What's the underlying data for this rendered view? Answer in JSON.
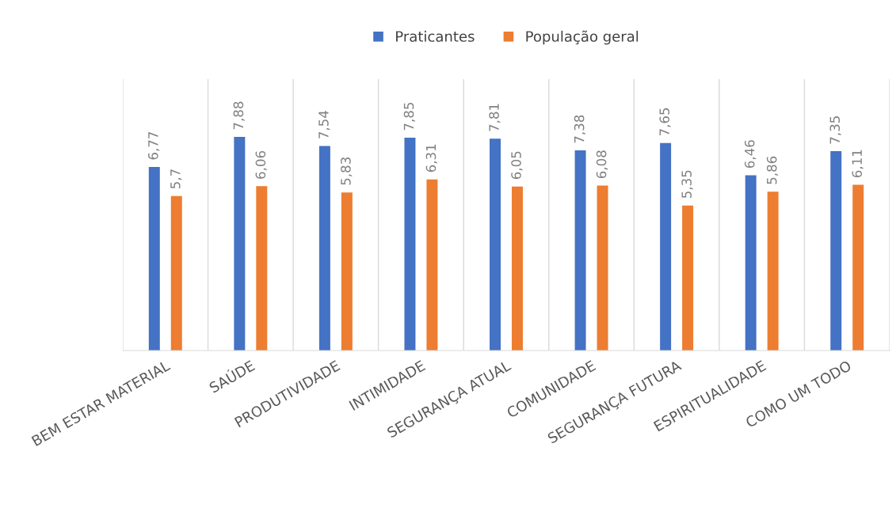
{
  "chart_data": {
    "type": "bar",
    "categories": [
      "BEM ESTAR MATERIAL",
      "SAÚDE",
      "PRODUTIVIDADE",
      "INTIMIDADE",
      "SEGURANÇA ATUAL",
      "COMUNIDADE",
      "SEGURANÇA FUTURA",
      "ESPIRITUALIDADE",
      "COMO UM TODO"
    ],
    "series": [
      {
        "name": "Praticantes",
        "color": "#4472c4",
        "values": [
          6.77,
          7.88,
          7.54,
          7.85,
          7.81,
          7.38,
          7.65,
          6.46,
          7.35
        ],
        "value_labels": [
          "6,77",
          "7,88",
          "7,54",
          "7,85",
          "7,81",
          "7,38",
          "7,65",
          "6,46",
          "7,35"
        ]
      },
      {
        "name": "População geral",
        "color": "#ed7d31",
        "values": [
          5.7,
          6.06,
          5.83,
          6.31,
          6.05,
          6.08,
          5.35,
          5.86,
          6.11
        ],
        "value_labels": [
          "5,7",
          "6,06",
          "5,83",
          "6,31",
          "6,05",
          "6,08",
          "5,35",
          "5,86",
          "6,11"
        ]
      }
    ],
    "grid": "x",
    "legend": "top"
  }
}
